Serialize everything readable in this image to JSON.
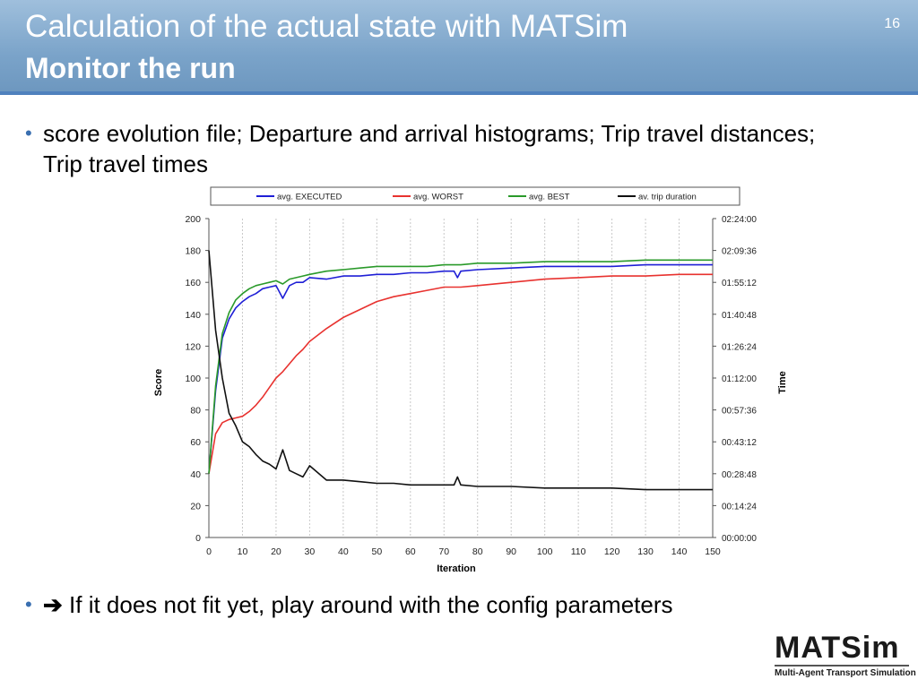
{
  "slide": {
    "title_line1": "Calculation of the actual state with MATSim",
    "title_line2": "Monitor the run",
    "page_number": "16",
    "bullet1": "score evolution file; Departure and arrival histograms; Trip travel distances; Trip travel times",
    "bullet2_arrow": "➔",
    "bullet2": " If it does not fit yet, play around with the config parameters",
    "bullet_marker": "•",
    "logo_text": "MATSim",
    "logo_subtitle": "Multi-Agent Transport Simulation"
  },
  "colors": {
    "header": "#7aa3c9",
    "header_rule": "#4f81bd",
    "executed": "#1f1fd6",
    "worst": "#e8322f",
    "best": "#2a9a2a",
    "trip_duration": "#111111"
  },
  "chart_data": {
    "type": "line",
    "xlabel": "Iteration",
    "ylabel": "Score",
    "y2label": "Time",
    "xlim": [
      0,
      150
    ],
    "ylim": [
      0,
      200
    ],
    "x_ticks": [
      "0",
      "10",
      "20",
      "30",
      "40",
      "50",
      "60",
      "70",
      "80",
      "90",
      "100",
      "110",
      "120",
      "130",
      "140",
      "150"
    ],
    "y_ticks": [
      "0",
      "20",
      "40",
      "60",
      "80",
      "100",
      "120",
      "140",
      "160",
      "180",
      "200"
    ],
    "y2_ticks": [
      "00:00:00",
      "00:14:24",
      "00:28:48",
      "00:43:12",
      "00:57:36",
      "01:12:00",
      "01:26:24",
      "01:40:48",
      "01:55:12",
      "02:09:36",
      "02:24:00"
    ],
    "grid": "vertical",
    "legend_position": "top",
    "x": [
      0,
      2,
      4,
      6,
      8,
      10,
      12,
      14,
      16,
      18,
      20,
      22,
      24,
      26,
      28,
      30,
      35,
      40,
      45,
      50,
      55,
      60,
      65,
      70,
      73,
      74,
      75,
      80,
      90,
      100,
      110,
      120,
      130,
      140,
      150
    ],
    "series": [
      {
        "name": "avg. EXECUTED",
        "color_key": "executed",
        "values": [
          40,
          92,
          125,
          137,
          144,
          148,
          151,
          153,
          156,
          157,
          158,
          150,
          158,
          160,
          160,
          163,
          162,
          164,
          164,
          165,
          165,
          166,
          166,
          167,
          167,
          163,
          167,
          168,
          169,
          170,
          170,
          170,
          171,
          171,
          171
        ]
      },
      {
        "name": "avg. WORST",
        "color_key": "worst",
        "values": [
          40,
          65,
          72,
          74,
          75,
          76,
          79,
          83,
          88,
          94,
          100,
          104,
          109,
          114,
          118,
          123,
          131,
          138,
          143,
          148,
          151,
          153,
          155,
          157,
          157,
          157,
          157,
          158,
          160,
          162,
          163,
          164,
          164,
          165,
          165
        ]
      },
      {
        "name": "avg. BEST",
        "color_key": "best",
        "values": [
          40,
          95,
          128,
          141,
          149,
          153,
          156,
          158,
          159,
          160,
          161,
          159,
          162,
          163,
          164,
          165,
          167,
          168,
          169,
          170,
          170,
          170,
          170,
          171,
          171,
          171,
          171,
          172,
          172,
          173,
          173,
          173,
          174,
          174,
          174
        ]
      },
      {
        "name": "av. trip duration",
        "color_key": "trip_duration",
        "values": [
          180,
          130,
          100,
          78,
          70,
          60,
          57,
          52,
          48,
          46,
          43,
          55,
          42,
          40,
          38,
          45,
          36,
          36,
          35,
          34,
          34,
          33,
          33,
          33,
          33,
          38,
          33,
          32,
          32,
          31,
          31,
          31,
          30,
          30,
          30
        ]
      }
    ]
  }
}
